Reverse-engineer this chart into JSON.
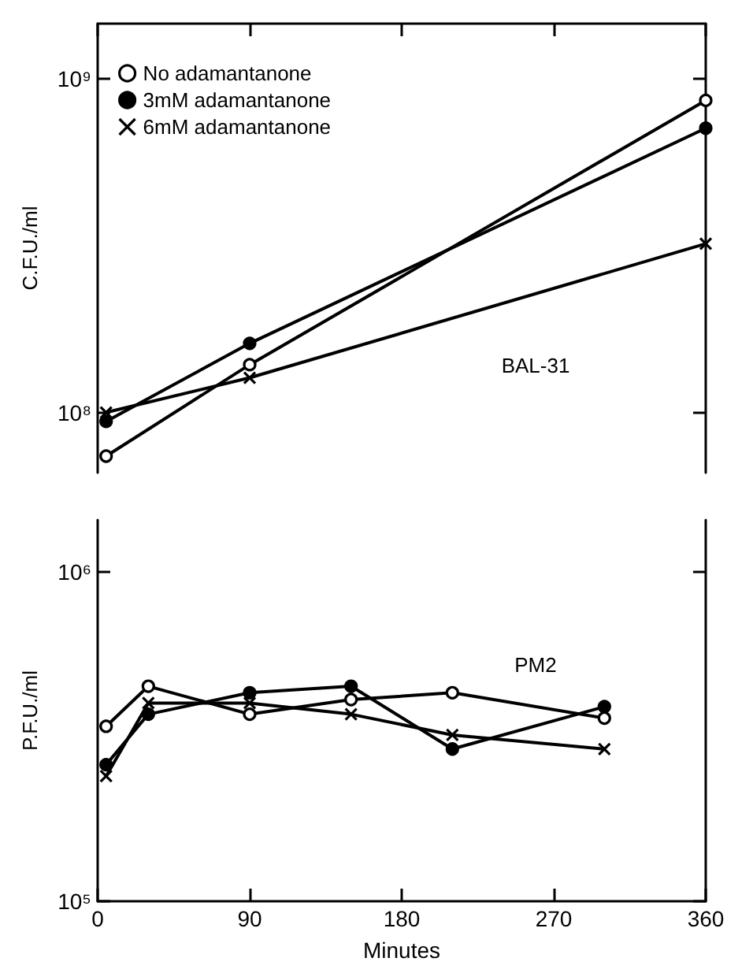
{
  "chart_data": [
    {
      "type": "line",
      "ylabel": "C.F.U./ml",
      "log": true,
      "xlim": [
        0,
        360
      ],
      "xticks": [
        0,
        90,
        180,
        270,
        360
      ],
      "ylim": [
        66000000,
        1460000000
      ],
      "yticks": [
        {
          "value": 100000000,
          "label": "10⁸"
        },
        {
          "value": 1000000000,
          "label": "10⁹"
        }
      ],
      "tick_labels": "y",
      "legend": "top left",
      "annotations": [
        "BAL-31"
      ],
      "series": [
        {
          "name": "No adamantanone",
          "color": "#000000",
          "colors": [
            "#ffffff",
            "#ffffff",
            "#ffffff"
          ],
          "marker": "circle",
          "x": [
            5,
            90,
            360
          ],
          "values": [
            74000000,
            139000000,
            860000000
          ]
        },
        {
          "name": "3mM adamantanone",
          "color": "#000000",
          "marker": "circle",
          "x": [
            5,
            90,
            360
          ],
          "values": [
            94000000,
            161000000,
            710000000
          ]
        },
        {
          "name": "6mM adamantanone",
          "color": "#000000",
          "marker": "cross",
          "x": [
            5,
            90,
            360
          ],
          "values": [
            100000000,
            127000000,
            320000000
          ]
        }
      ]
    },
    {
      "type": "line",
      "xlabel": "Minutes",
      "ylabel": "P.F.U./ml",
      "log": true,
      "xlim": [
        0,
        360
      ],
      "xticks": [
        0,
        90,
        180,
        270,
        360
      ],
      "ylim": [
        100000,
        1440000
      ],
      "yticks": [
        {
          "value": 100000,
          "label": "10⁵"
        },
        {
          "value": 1000000,
          "label": "10⁶"
        }
      ],
      "annotations": [
        "PM2"
      ],
      "series": [
        {
          "color": "#000000",
          "colors": [
            "#ffffff",
            "#ffffff",
            "#ffffff",
            "#ffffff",
            "#ffffff",
            "#ffffff"
          ],
          "marker": "circle",
          "x": [
            5,
            30,
            90,
            150,
            210,
            300
          ],
          "values": [
            340000,
            450000,
            370000,
            410000,
            430000,
            360000
          ]
        },
        {
          "color": "#000000",
          "marker": "circle",
          "x": [
            5,
            30,
            90,
            150,
            210,
            300
          ],
          "values": [
            260000,
            370000,
            430000,
            450000,
            290000,
            390000
          ]
        },
        {
          "color": "#000000",
          "marker": "cross",
          "x": [
            5,
            30,
            90,
            150,
            210,
            300
          ],
          "values": [
            240000,
            400000,
            400000,
            370000,
            320000,
            290000
          ]
        }
      ]
    }
  ]
}
